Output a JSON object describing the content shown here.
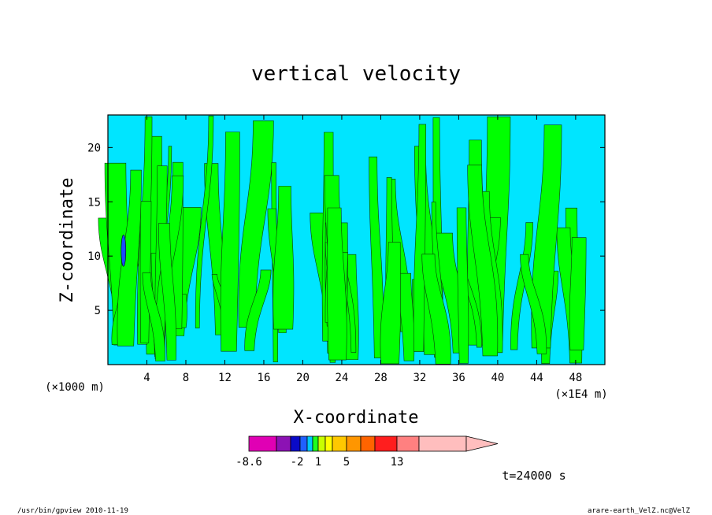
{
  "chart_data": {
    "type": "heatmap",
    "title": "vertical velocity",
    "xlabel": "X-coordinate",
    "ylabel": "Z-coordinate",
    "x_units_left": "(×1000 m)",
    "x_units_right": "(×1E4 m)",
    "xlim": [
      0,
      51
    ],
    "ylim": [
      0,
      23
    ],
    "x_ticks": [
      "4",
      "8",
      "12",
      "16",
      "20",
      "24",
      "28",
      "32",
      "36",
      "40",
      "44",
      "48"
    ],
    "y_ticks": [
      "5",
      "10",
      "15",
      "20"
    ],
    "fields_description": "Contour fill of vertical velocity: mostly cyan (near-zero) background with green upward plumes; small dark blue cells near x≈2, z≈10",
    "colorbar": {
      "labels": [
        "-8.6",
        "-2",
        "1",
        "5",
        "13"
      ],
      "colors": [
        "#e000b4",
        "#8c12b4",
        "#0a0ac8",
        "#2060ff",
        "#00c8ff",
        "#1eff1e",
        "#c8ff00",
        "#ffff00",
        "#ffc800",
        "#ff9600",
        "#ff6400",
        "#ff1e1e",
        "#ff8080",
        "#ffbebe"
      ]
    },
    "field_colors": {
      "background": "#00e5ff",
      "updraft": "#00ff00",
      "downdraft": "#1a4cff"
    },
    "time_label": "t=24000 s",
    "grid": false
  },
  "footer": {
    "left": "/usr/bin/gpview   2010-11-19",
    "right": "arare-earth_VelZ.nc@VelZ"
  }
}
